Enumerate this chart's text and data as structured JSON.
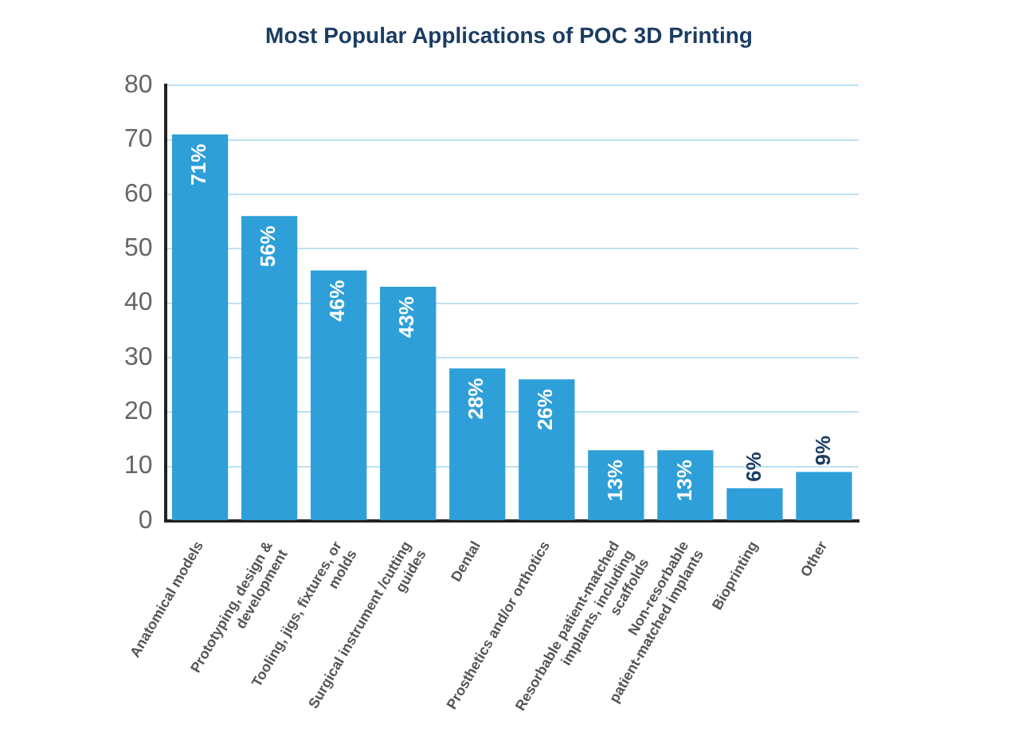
{
  "chart_data": {
    "type": "bar",
    "title": "Most Popular Applications of POC 3D Printing",
    "categories": [
      "Anatomical models",
      "Prototyping, design & development",
      "Tooling, jigs, fixtures, or molds",
      "Surgical instrument /cutting guides",
      "Dental",
      "Prosthetics and/or orthotics",
      "Resorbable patient-matched implants, including scaffolds",
      "Non-resorbable patient-matched implants",
      "Bioprinting",
      "Other"
    ],
    "values": [
      71,
      56,
      46,
      43,
      28,
      26,
      13,
      13,
      6,
      9
    ],
    "value_labels": [
      "71%",
      "56%",
      "46%",
      "43%",
      "28%",
      "26%",
      "13%",
      "13%",
      "6%",
      "9%"
    ],
    "color": "#2e9fd8",
    "ylim": [
      0,
      80
    ],
    "yticks": [
      0,
      10,
      20,
      30,
      40,
      50,
      60,
      70,
      80
    ],
    "grid": "y",
    "legend": false
  }
}
